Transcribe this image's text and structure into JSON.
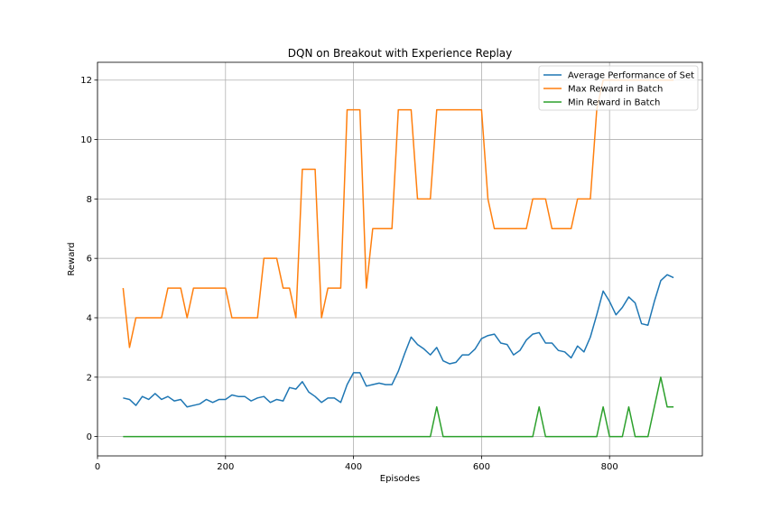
{
  "chart_data": {
    "type": "line",
    "title": "DQN on Breakout with Experience Replay",
    "xlabel": "Episodes",
    "ylabel": "Reward",
    "xlim": [
      0,
      945
    ],
    "ylim": [
      -0.65,
      12.6
    ],
    "xticks": [
      0,
      200,
      400,
      600,
      800
    ],
    "yticks": [
      0,
      2,
      4,
      6,
      8,
      10,
      12
    ],
    "grid": true,
    "legend_position": "top-right",
    "x": [
      40,
      50,
      60,
      70,
      80,
      90,
      100,
      110,
      120,
      130,
      140,
      150,
      160,
      170,
      180,
      190,
      200,
      210,
      220,
      230,
      240,
      250,
      260,
      270,
      280,
      290,
      300,
      310,
      320,
      330,
      340,
      350,
      360,
      370,
      380,
      390,
      400,
      410,
      420,
      430,
      440,
      450,
      460,
      470,
      480,
      490,
      500,
      510,
      520,
      530,
      540,
      550,
      560,
      570,
      580,
      590,
      600,
      610,
      620,
      630,
      640,
      650,
      660,
      670,
      680,
      690,
      700,
      710,
      720,
      730,
      740,
      750,
      760,
      770,
      780,
      790,
      800,
      810,
      820,
      830,
      840,
      850,
      860,
      870,
      880,
      890,
      900
    ],
    "series": [
      {
        "name": "Average Performance of Set",
        "color": "#1f77b4",
        "values": [
          1.3,
          1.25,
          1.05,
          1.35,
          1.25,
          1.45,
          1.25,
          1.35,
          1.2,
          1.25,
          1.0,
          1.05,
          1.1,
          1.25,
          1.15,
          1.25,
          1.25,
          1.4,
          1.35,
          1.35,
          1.2,
          1.3,
          1.35,
          1.15,
          1.25,
          1.2,
          1.65,
          1.6,
          1.85,
          1.5,
          1.35,
          1.15,
          1.3,
          1.3,
          1.15,
          1.75,
          2.15,
          2.15,
          1.7,
          1.75,
          1.8,
          1.75,
          1.75,
          2.2,
          2.8,
          3.35,
          3.1,
          2.95,
          2.75,
          3.0,
          2.55,
          2.45,
          2.5,
          2.75,
          2.75,
          2.95,
          3.3,
          3.4,
          3.45,
          3.15,
          3.1,
          2.75,
          2.9,
          3.25,
          3.45,
          3.5,
          3.15,
          3.15,
          2.9,
          2.85,
          2.65,
          3.05,
          2.85,
          3.35,
          4.1,
          4.9,
          4.55,
          4.1,
          4.35,
          4.7,
          4.5,
          3.8,
          3.75,
          4.55,
          5.25,
          5.45,
          5.35
        ]
      },
      {
        "name": "Max Reward in Batch",
        "color": "#ff7f0e",
        "values": [
          5,
          3,
          4,
          4,
          4,
          4,
          4,
          5,
          5,
          5,
          4,
          5,
          5,
          5,
          5,
          5,
          5,
          4,
          4,
          4,
          4,
          4,
          6,
          6,
          6,
          5,
          5,
          4,
          9,
          9,
          9,
          4,
          5,
          5,
          5,
          11,
          11,
          11,
          5,
          7,
          7,
          7,
          7,
          11,
          11,
          11,
          8,
          8,
          8,
          11,
          11,
          11,
          11,
          11,
          11,
          11,
          11,
          8,
          7,
          7,
          7,
          7,
          7,
          7,
          8,
          8,
          8,
          7,
          7,
          7,
          7,
          8,
          8,
          8,
          11,
          12,
          12,
          12,
          12,
          12,
          12,
          12,
          12,
          12,
          12,
          12,
          12
        ]
      },
      {
        "name": "Min Reward in Batch",
        "color": "#2ca02c",
        "values": [
          0,
          0,
          0,
          0,
          0,
          0,
          0,
          0,
          0,
          0,
          0,
          0,
          0,
          0,
          0,
          0,
          0,
          0,
          0,
          0,
          0,
          0,
          0,
          0,
          0,
          0,
          0,
          0,
          0,
          0,
          0,
          0,
          0,
          0,
          0,
          0,
          0,
          0,
          0,
          0,
          0,
          0,
          0,
          0,
          0,
          0,
          0,
          0,
          0,
          1,
          0,
          0,
          0,
          0,
          0,
          0,
          0,
          0,
          0,
          0,
          0,
          0,
          0,
          0,
          0,
          1,
          0,
          0,
          0,
          0,
          0,
          0,
          0,
          0,
          0,
          1,
          0,
          0,
          0,
          1,
          0,
          0,
          0,
          1,
          2,
          1,
          1
        ]
      }
    ]
  }
}
